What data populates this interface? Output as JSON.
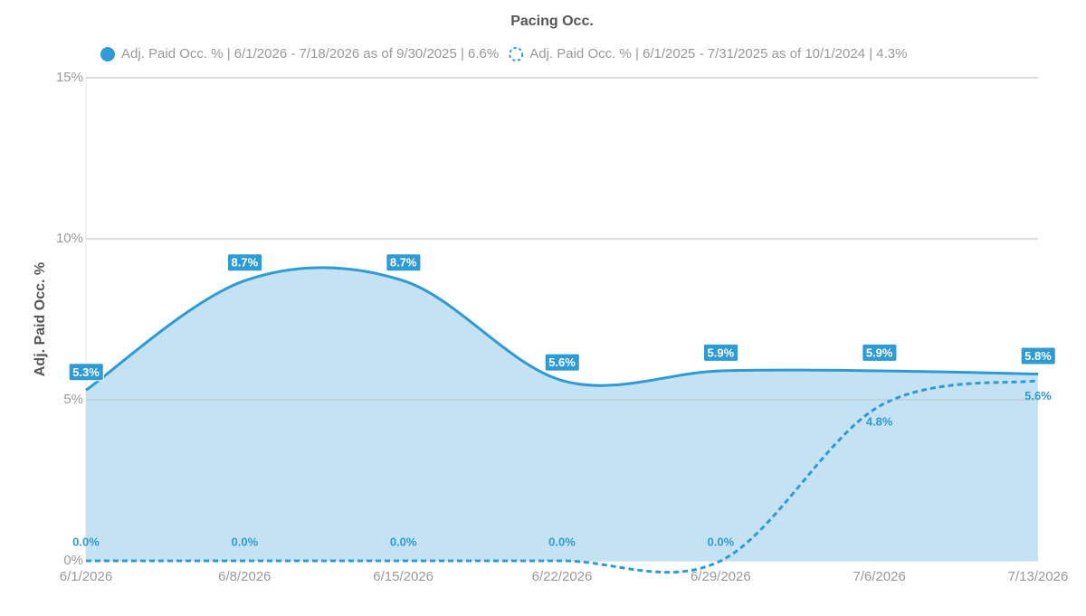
{
  "chart_data": {
    "type": "line",
    "title": "Pacing Occ.",
    "y_label": "Adj. Paid Occ. %",
    "categories": [
      "6/1/2026",
      "6/8/2026",
      "6/15/2026",
      "6/22/2026",
      "6/29/2026",
      "7/6/2026",
      "7/13/2026"
    ],
    "ylim": [
      0,
      15
    ],
    "yticks": [
      {
        "value": 0,
        "label": "0%"
      },
      {
        "value": 5,
        "label": "5%"
      },
      {
        "value": 10,
        "label": "10%"
      },
      {
        "value": 15,
        "label": "15%"
      }
    ],
    "grid": true,
    "legend": "top",
    "series": [
      {
        "name": "Adj. Paid Occ. % | 6/1/2026 - 7/18/2026 as of 9/30/2025 | 6.6%",
        "color": "#2e9bd4",
        "fill": "#c4e2f3",
        "line_style": "solid",
        "values": [
          5.3,
          8.7,
          8.7,
          5.6,
          5.9,
          5.9,
          5.8
        ],
        "value_labels": [
          "5.3%",
          "8.7%",
          "8.7%",
          "5.6%",
          "5.9%",
          "5.9%",
          "5.8%"
        ]
      },
      {
        "name": "Adj. Paid Occ. % | 6/1/2025 - 7/31/2025 as of 10/1/2024 | 4.3%",
        "color": "#2e9bd4",
        "line_style": "dashed",
        "values": [
          0,
          0,
          0,
          0,
          0,
          4.8,
          5.6
        ],
        "value_labels": [
          "0.0%",
          "0.0%",
          "0.0%",
          "0.0%",
          "0.0%",
          "4.8%",
          "5.6%"
        ]
      }
    ]
  }
}
